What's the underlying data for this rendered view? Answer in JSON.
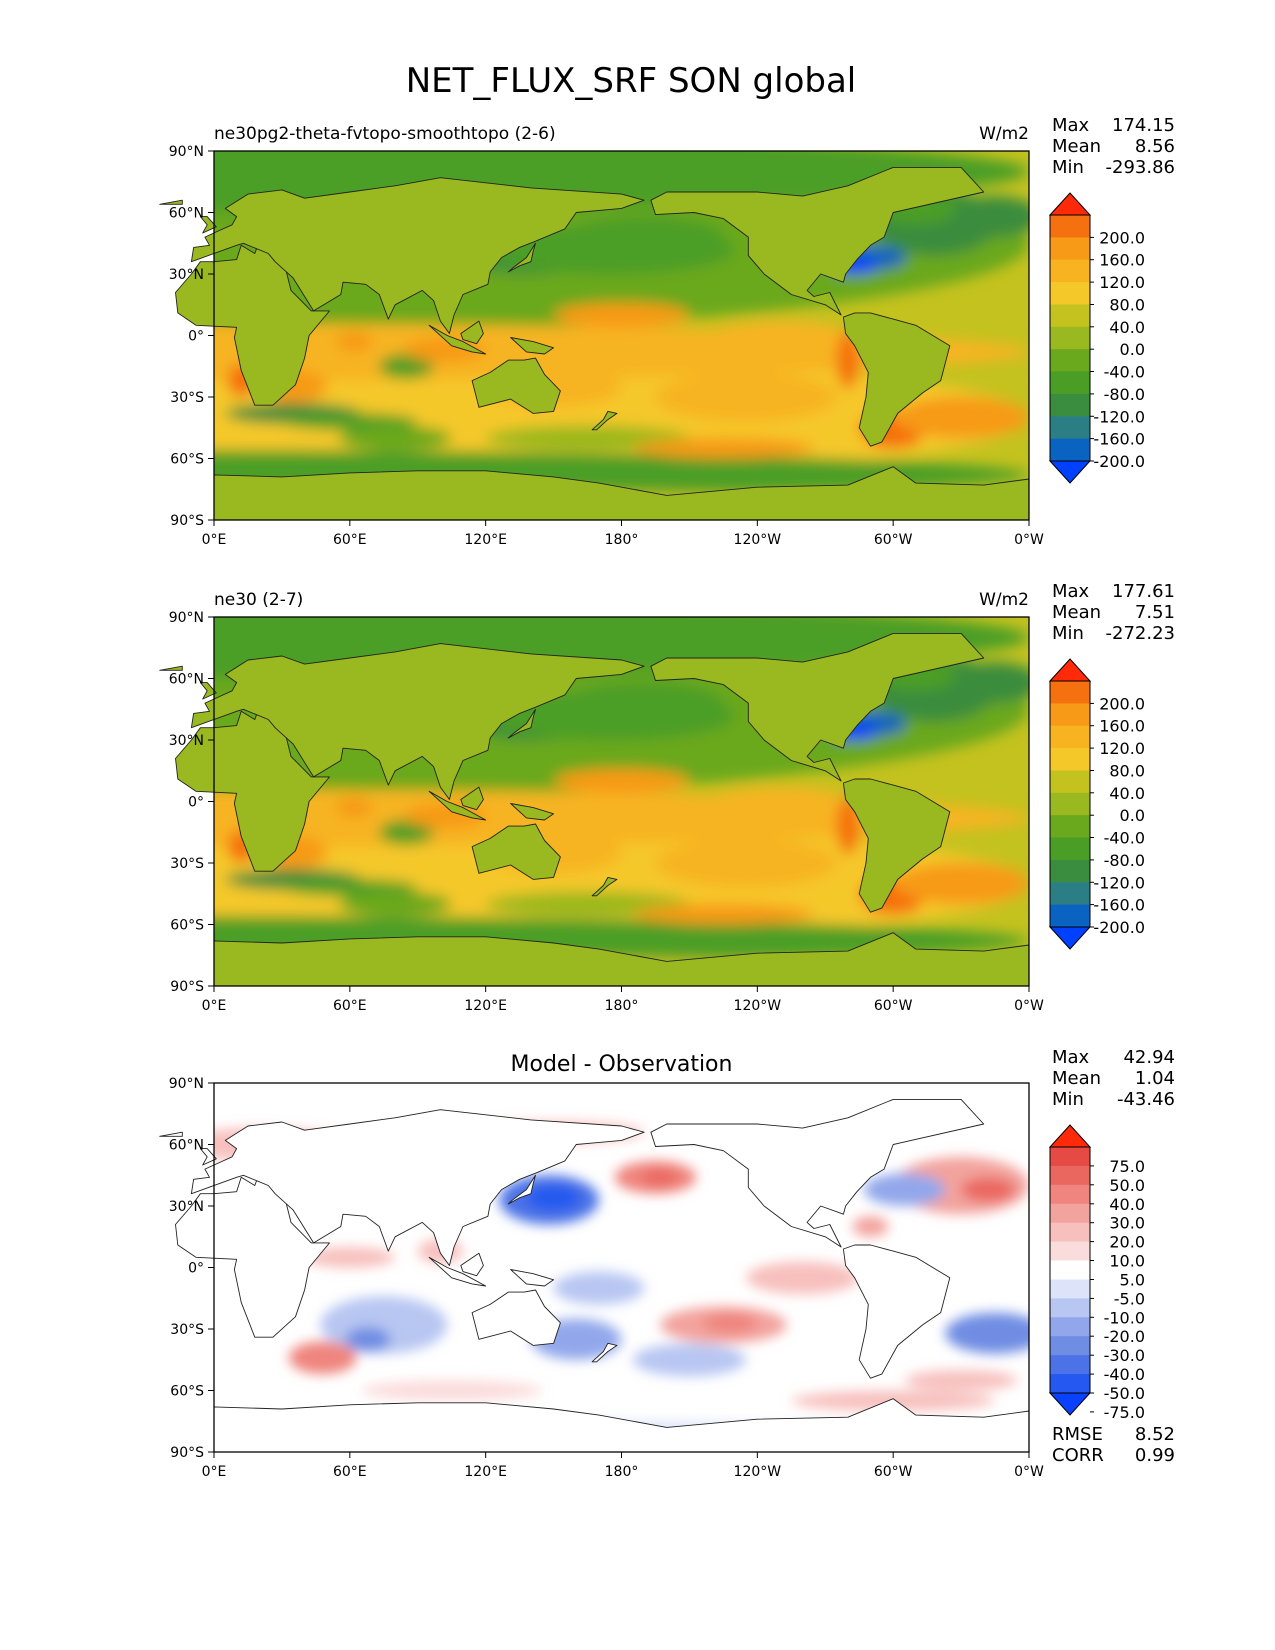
{
  "title": "NET_FLUX_SRF SON global",
  "axes": {
    "lat_ticks": [
      "90°N",
      "60°N",
      "30°N",
      "0°",
      "30°S",
      "60°S",
      "90°S"
    ],
    "lon_ticks": [
      "0°E",
      "60°E",
      "120°E",
      "180°",
      "120°W",
      "60°W",
      "0°W"
    ]
  },
  "colors": {
    "main": [
      "#0040ff",
      "#0a63c0",
      "#2b7f84",
      "#3a8c3e",
      "#4b9e25",
      "#6aa81e",
      "#9ab81f",
      "#c4c21f",
      "#f5c829",
      "#f7b420",
      "#f79a17",
      "#f5700f",
      "#ff2a0a"
    ],
    "diff": [
      "#0a40ff",
      "#2458f0",
      "#4b72e6",
      "#6f8de3",
      "#92a7eb",
      "#b8c6f2",
      "#dde4f9",
      "#ffffff",
      "#fbdcdc",
      "#f7c0bd",
      "#f3a39d",
      "#ef857e",
      "#ea6760",
      "#e64a44",
      "#ff2a0a"
    ]
  },
  "panels": [
    {
      "id": "test",
      "left_title": "ne30pg2-theta-fvtopo-smoothtopo (2-6)",
      "center_title": "",
      "units": "W/m2",
      "stats": [
        {
          "label": "Max",
          "value": "174.15"
        },
        {
          "label": "Mean",
          "value": "8.56"
        },
        {
          "label": "Min",
          "value": "-293.86"
        }
      ],
      "colorbar_labels": [
        "200.0",
        "160.0",
        "120.0",
        "80.0",
        "40.0",
        "0.0",
        "-40.0",
        "-80.0",
        "-120.0",
        "-160.0",
        "-200.0"
      ]
    },
    {
      "id": "reference",
      "left_title": "ne30 (2-7)",
      "center_title": "",
      "units": "W/m2",
      "stats": [
        {
          "label": "Max",
          "value": "177.61"
        },
        {
          "label": "Mean",
          "value": "7.51"
        },
        {
          "label": "Min",
          "value": "-272.23"
        }
      ],
      "colorbar_labels": [
        "200.0",
        "160.0",
        "120.0",
        "80.0",
        "40.0",
        "0.0",
        "-40.0",
        "-80.0",
        "-120.0",
        "-160.0",
        "-200.0"
      ]
    },
    {
      "id": "difference",
      "left_title": "",
      "center_title": "Model - Observation",
      "units": "",
      "stats": [
        {
          "label": "Max",
          "value": "42.94"
        },
        {
          "label": "Mean",
          "value": "1.04"
        },
        {
          "label": "Min",
          "value": "-43.46"
        }
      ],
      "colorbar_labels": [
        "75.0",
        "50.0",
        "40.0",
        "30.0",
        "20.0",
        "10.0",
        "5.0",
        "-5.0",
        "-10.0",
        "-20.0",
        "-30.0",
        "-40.0",
        "-50.0",
        "-75.0"
      ],
      "metrics": [
        {
          "label": "RMSE",
          "value": "8.52"
        },
        {
          "label": "CORR",
          "value": "0.99"
        }
      ]
    }
  ]
}
